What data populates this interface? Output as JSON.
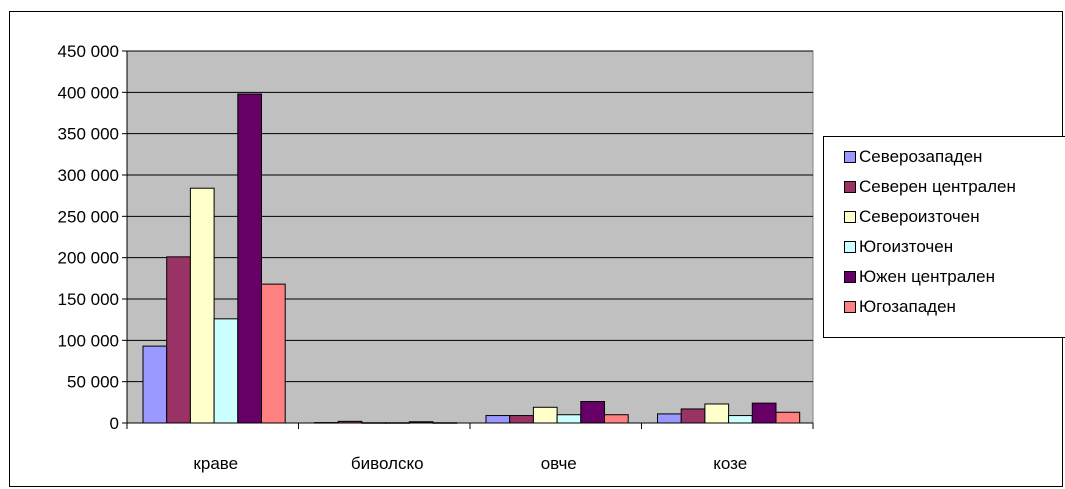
{
  "chart_data": {
    "type": "bar",
    "categories": [
      "краве",
      "биволско",
      "овче",
      "козе"
    ],
    "ylim": [
      0,
      450000
    ],
    "yticks": [
      0,
      50000,
      100000,
      150000,
      200000,
      250000,
      300000,
      350000,
      400000,
      450000
    ],
    "ytick_labels": [
      "0",
      "50 000",
      "100 000",
      "150 000",
      "200 000",
      "250 000",
      "300 000",
      "350 000",
      "400 000",
      "450 000"
    ],
    "grid": true,
    "legend_position": "right",
    "plot_background": "#c0c0c0",
    "series": [
      {
        "name": "Северозападен",
        "color": "#9999ff",
        "values": [
          93000,
          500,
          9000,
          11000
        ]
      },
      {
        "name": "Северен централен",
        "color": "#993366",
        "values": [
          201000,
          2000,
          9000,
          17000
        ]
      },
      {
        "name": "Североизточен",
        "color": "#ffffcc",
        "values": [
          284000,
          300,
          19000,
          23000
        ]
      },
      {
        "name": "Югоизточен",
        "color": "#ccffff",
        "values": [
          126000,
          300,
          10000,
          9000
        ]
      },
      {
        "name": "Южен централен",
        "color": "#660066",
        "values": [
          398000,
          1500,
          26000,
          24000
        ]
      },
      {
        "name": "Югозападен",
        "color": "#ff8080",
        "values": [
          168000,
          300,
          10000,
          13000
        ]
      }
    ]
  }
}
